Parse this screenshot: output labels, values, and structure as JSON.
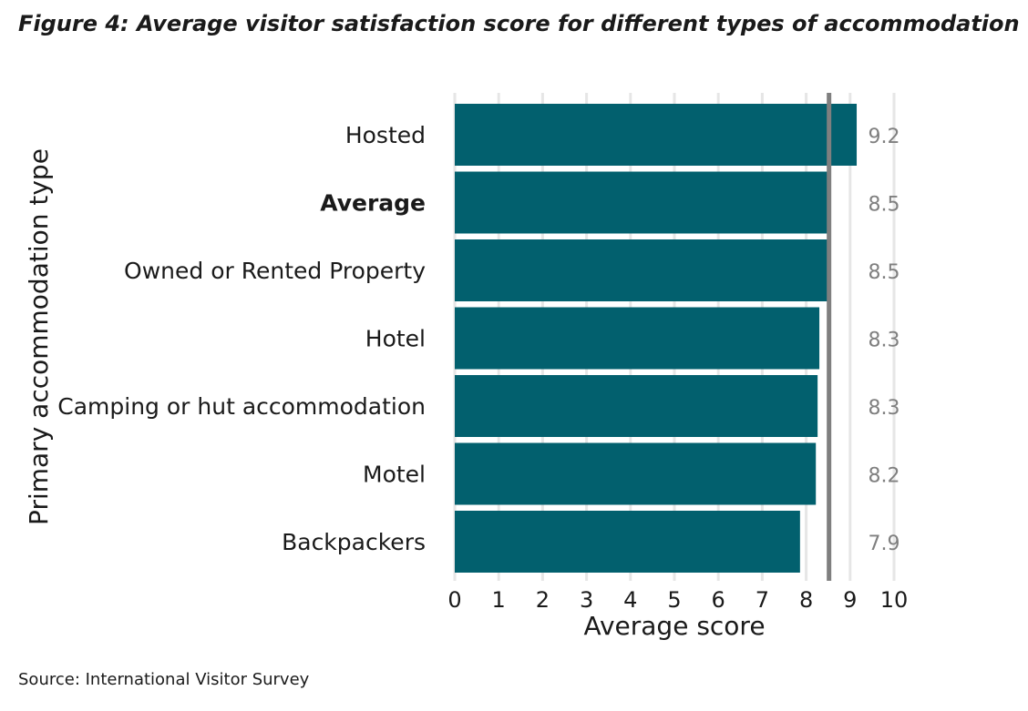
{
  "figure": {
    "title": "Figure 4: Average visitor satisfaction score for different types of accommodation",
    "source": "Source: International Visitor Survey"
  },
  "chart_data": {
    "type": "bar",
    "orientation": "horizontal",
    "categories": [
      "Hosted",
      "Average",
      "Owned or Rented Property",
      "Hotel",
      "Camping or hut accommodation",
      "Motel",
      "Backpackers"
    ],
    "highlighted_category": "Average",
    "values": [
      9.15,
      8.52,
      8.48,
      8.3,
      8.26,
      8.22,
      7.86
    ],
    "value_labels": [
      "9.2",
      "8.5",
      "8.5",
      "8.3",
      "8.3",
      "8.2",
      "7.9"
    ],
    "reference_line": 8.52,
    "xlabel": "Average score",
    "ylabel": "Primary accommodation type",
    "xlim": [
      0,
      10
    ],
    "xticks": [
      "0",
      "1",
      "2",
      "3",
      "4",
      "5",
      "6",
      "7",
      "8",
      "9",
      "10"
    ],
    "grid": "vertical",
    "colors": {
      "bar": "#02606e",
      "reference_line": "#7f7f7f",
      "grid": "#e6e6e6",
      "value_label": "#7f7f7f",
      "text": "#1a1a1a"
    }
  }
}
